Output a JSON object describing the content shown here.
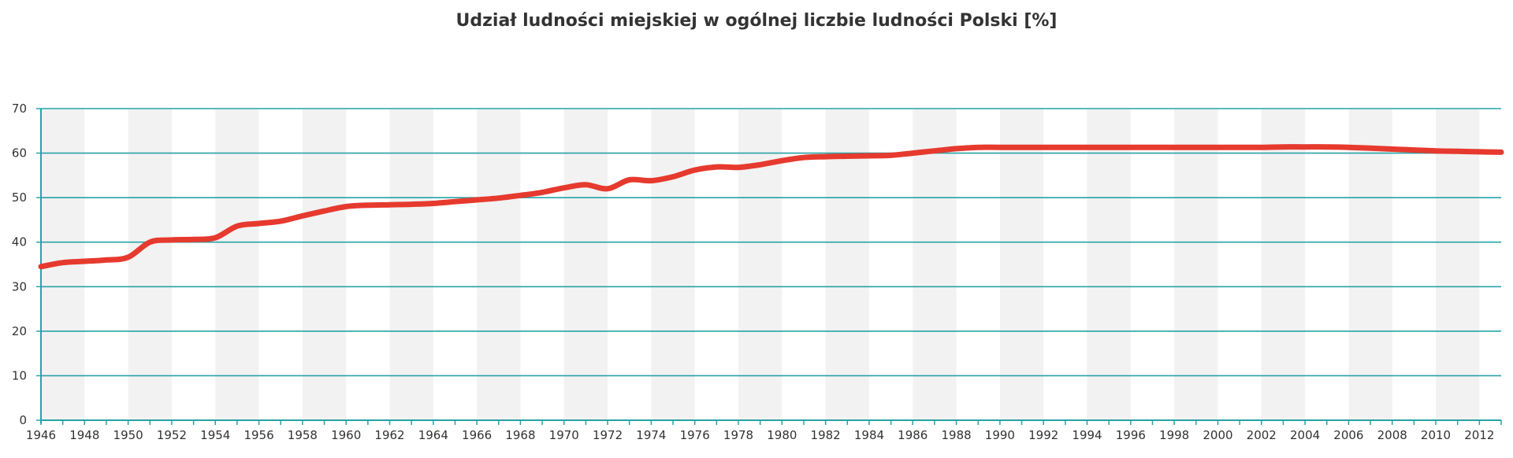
{
  "chart_data": {
    "type": "line",
    "title": "Udział ludności miejskiej w ogólnej liczbie ludności Polski [%]",
    "xlabel": "",
    "ylabel": "",
    "xlim": [
      1946,
      2013
    ],
    "ylim": [
      0,
      70
    ],
    "x_ticks": [
      1946,
      1948,
      1950,
      1952,
      1954,
      1956,
      1958,
      1960,
      1962,
      1964,
      1966,
      1968,
      1970,
      1972,
      1974,
      1976,
      1978,
      1980,
      1982,
      1984,
      1986,
      1988,
      1990,
      1992,
      1994,
      1996,
      1998,
      2000,
      2002,
      2004,
      2006,
      2008,
      2010,
      2012
    ],
    "y_ticks": [
      0,
      10,
      20,
      30,
      40,
      50,
      60,
      70
    ],
    "grid": true,
    "legend": "none",
    "series": [
      {
        "color": "#e63a2e",
        "x": [
          1946,
          1947,
          1948,
          1949,
          1950,
          1951,
          1952,
          1953,
          1954,
          1955,
          1956,
          1957,
          1958,
          1959,
          1960,
          1961,
          1962,
          1963,
          1964,
          1965,
          1966,
          1967,
          1968,
          1969,
          1970,
          1971,
          1972,
          1973,
          1974,
          1975,
          1976,
          1977,
          1978,
          1979,
          1980,
          1981,
          1982,
          1983,
          1984,
          1985,
          1986,
          1987,
          1988,
          1989,
          1990,
          1991,
          1992,
          1993,
          1994,
          1995,
          1996,
          1997,
          1998,
          1999,
          2000,
          2001,
          2002,
          2003,
          2004,
          2005,
          2006,
          2007,
          2008,
          2009,
          2010,
          2011,
          2012,
          2013
        ],
        "y": [
          34.5,
          35.4,
          35.7,
          36.0,
          36.6,
          40.0,
          40.5,
          40.6,
          41.0,
          43.6,
          44.2,
          44.7,
          45.9,
          47.0,
          48.0,
          48.3,
          48.4,
          48.5,
          48.7,
          49.1,
          49.5,
          49.9,
          50.5,
          51.2,
          52.2,
          52.9,
          52.0,
          54.0,
          53.8,
          54.7,
          56.2,
          56.9,
          56.8,
          57.4,
          58.3,
          59.0,
          59.2,
          59.3,
          59.4,
          59.5,
          60.0,
          60.5,
          61.0,
          61.3,
          61.3,
          61.3,
          61.3,
          61.3,
          61.3,
          61.3,
          61.3,
          61.3,
          61.3,
          61.3,
          61.3,
          61.3,
          61.3,
          61.4,
          61.4,
          61.4,
          61.3,
          61.1,
          60.9,
          60.7,
          60.5,
          60.4,
          60.3,
          60.2
        ]
      }
    ],
    "colors": {
      "band": "#f2f2f2",
      "gridline": "#27a3a6",
      "axis": "#27a3a6",
      "line": "#e63a2e",
      "text": "#333333"
    }
  }
}
